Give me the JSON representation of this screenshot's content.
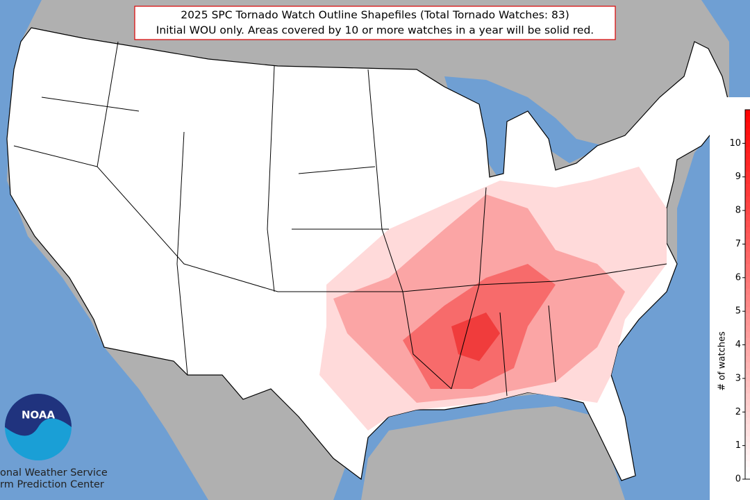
{
  "title_lines": [
    "2025 SPC Tornado Watch Outline Shapefiles (Total Tornado Watches: 83)",
    "Initial WOU only. Areas covered by 10 or more watches in a year will be solid red."
  ],
  "colorbar": {
    "label": "# of watches",
    "lim": [
      0,
      11
    ],
    "ticks": [
      0,
      1,
      2,
      3,
      4,
      5,
      6,
      7,
      8,
      9,
      10
    ]
  },
  "logo": {
    "name": "NOAA",
    "lines": [
      "onal Weather Service",
      "rm Prediction Center"
    ]
  }
}
